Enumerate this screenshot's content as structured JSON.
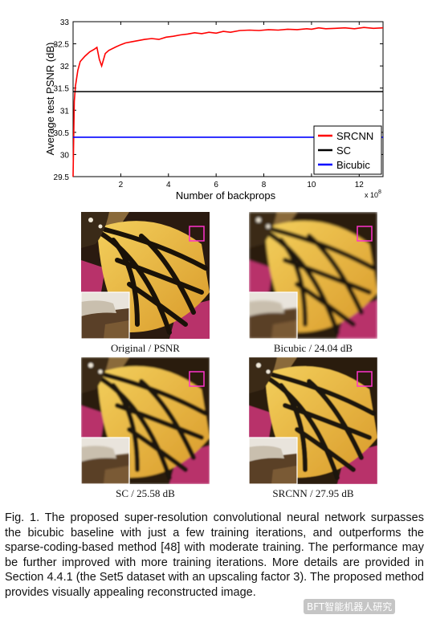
{
  "chart_data": {
    "type": "line",
    "xlabel": "Number of backprops",
    "ylabel": "Average test PSNR (dB)",
    "x_exponent": "x 10",
    "x_exponent_power": "8",
    "xlim": [
      0,
      13
    ],
    "ylim": [
      29.5,
      33
    ],
    "xticks": [
      "2",
      "4",
      "6",
      "8",
      "10",
      "12"
    ],
    "yticks": [
      "29.5",
      "30",
      "30.5",
      "31",
      "31.5",
      "32",
      "32.5",
      "33"
    ],
    "legend_position": "bottom-right",
    "series": [
      {
        "name": "SRCNN",
        "color": "#ff0000",
        "x": [
          0,
          0.05,
          0.1,
          0.2,
          0.3,
          0.5,
          0.7,
          0.9,
          1.0,
          1.1,
          1.2,
          1.35,
          1.5,
          1.8,
          2.0,
          2.2,
          2.5,
          2.8,
          3.0,
          3.3,
          3.6,
          3.9,
          4.2,
          4.5,
          4.8,
          5.1,
          5.4,
          5.7,
          6.0,
          6.3,
          6.6,
          7.0,
          7.4,
          7.8,
          8.2,
          8.6,
          9.0,
          9.4,
          9.8,
          10.0,
          10.3,
          10.6,
          11.0,
          11.4,
          11.8,
          12.2,
          12.6,
          13.0
        ],
        "y": [
          29.5,
          31.2,
          31.55,
          31.9,
          32.1,
          32.22,
          32.32,
          32.38,
          32.42,
          32.15,
          32.0,
          32.28,
          32.35,
          32.43,
          32.48,
          32.52,
          32.55,
          32.58,
          32.6,
          32.62,
          32.6,
          32.65,
          32.67,
          32.7,
          32.72,
          32.75,
          32.73,
          32.76,
          32.74,
          32.78,
          32.76,
          32.8,
          32.81,
          32.8,
          32.82,
          32.81,
          32.83,
          32.82,
          32.84,
          32.83,
          32.86,
          32.84,
          32.85,
          32.86,
          32.84,
          32.87,
          32.85,
          32.86
        ]
      },
      {
        "name": "SC",
        "color": "#000000",
        "y": 31.42
      },
      {
        "name": "Bicubic",
        "color": "#0000ff",
        "y": 30.39
      }
    ]
  },
  "figures": [
    {
      "caption": "Original / PSNR"
    },
    {
      "caption": "Bicubic / 24.04 dB"
    },
    {
      "caption": "SC / 25.58 dB"
    },
    {
      "caption": "SRCNN / 27.95 dB"
    }
  ],
  "caption": {
    "text": "Fig. 1. The proposed super-resolution convolutional neural network surpasses the bicubic baseline with just a few training iterations, and outperforms the sparse-coding-based method [48] with moderate training. The performance may be further improved with more training iterations. More details are provided in Section 4.4.1 (the Set5 dataset with an upscaling factor 3). The proposed method provides visually appealing reconstructed image."
  },
  "watermark": {
    "text": "BFT智能机器人研究"
  },
  "colors": {
    "wing_orange": "#e8b43a",
    "wing_vein": "#1a1208",
    "background_magenta": "#b8326a",
    "highlight_box": "#ff33cc"
  }
}
